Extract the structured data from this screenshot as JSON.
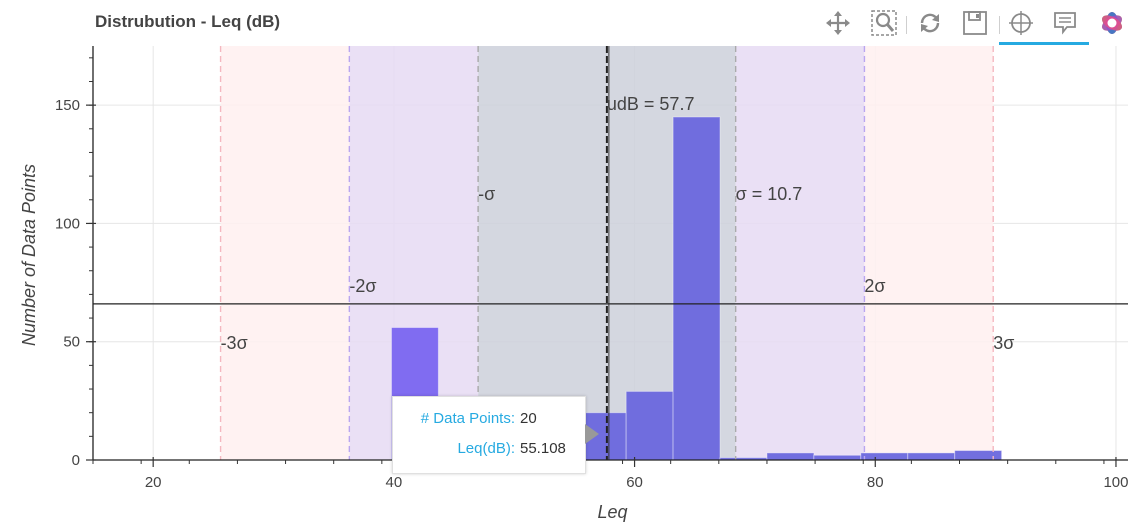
{
  "chart_data": {
    "type": "bar",
    "title": "Distrubution - Leq (dB)",
    "xlabel": "Leq",
    "ylabel": "Number of Data Points",
    "xlim": [
      15,
      101
    ],
    "ylim": [
      0,
      175
    ],
    "xticks": [
      20,
      40,
      60,
      80,
      100
    ],
    "yticks": [
      0,
      50,
      100,
      150
    ],
    "grid": true,
    "bin_width": 3.9,
    "bins": [
      {
        "start": 39.8,
        "value": 56
      },
      {
        "start": 43.7,
        "value": 11
      },
      {
        "start": 47.6,
        "value": 10
      },
      {
        "start": 51.5,
        "value": 14
      },
      {
        "start": 55.4,
        "value": 20
      },
      {
        "start": 59.3,
        "value": 29
      },
      {
        "start": 63.2,
        "value": 145
      },
      {
        "start": 67.1,
        "value": 1
      },
      {
        "start": 71.0,
        "value": 3
      },
      {
        "start": 74.9,
        "value": 2
      },
      {
        "start": 78.8,
        "value": 3
      },
      {
        "start": 82.7,
        "value": 3
      },
      {
        "start": 86.6,
        "value": 4
      }
    ],
    "mean": 57.7,
    "sigma": 10.7,
    "horizontal_line": 66,
    "bands": [
      {
        "from": 47.0,
        "to": 68.4,
        "color": "#cdd0da"
      },
      {
        "from": 36.3,
        "to": 47.0,
        "color": "#e6daf3"
      },
      {
        "from": 68.4,
        "to": 79.1,
        "color": "#e6daf3"
      },
      {
        "from": 25.6,
        "to": 36.3,
        "color": "#fff0f0"
      },
      {
        "from": 79.1,
        "to": 89.8,
        "color": "#fff0f0"
      }
    ],
    "vlines": [
      {
        "x": 47.0,
        "color": "#aaaaaa"
      },
      {
        "x": 68.4,
        "color": "#aaaaaa"
      },
      {
        "x": 36.3,
        "color": "#b9a6f0"
      },
      {
        "x": 79.1,
        "color": "#b9a6f0"
      },
      {
        "x": 25.6,
        "color": "#f4b8c0"
      },
      {
        "x": 89.8,
        "color": "#f4b8c0"
      }
    ],
    "annotations": [
      {
        "text": "udB = 57.7",
        "x": 57.7,
        "y": 150
      },
      {
        "text": "-σ",
        "x": 47.0,
        "y": 112
      },
      {
        "text": "σ = 10.7",
        "x": 68.4,
        "y": 112
      },
      {
        "text": "-2σ",
        "x": 36.3,
        "y": 73
      },
      {
        "text": "2σ",
        "x": 79.1,
        "y": 73
      },
      {
        "text": "-3σ",
        "x": 25.6,
        "y": 49
      },
      {
        "text": "3σ",
        "x": 89.8,
        "y": 49
      }
    ],
    "bar_color": "#6a67dd",
    "highlight_bar_color": "#7a65f0",
    "highlight_bin": 0
  },
  "tooltip": {
    "key1": "# Data Points:",
    "val1": "20",
    "key2": "Leq(dB):",
    "val2": "55.108"
  },
  "toolbar": {
    "tools": [
      "pan-icon",
      "box-zoom-icon",
      "reset-icon",
      "save-icon",
      "crosshair-icon",
      "hover-icon",
      "bokeh-logo-icon"
    ]
  }
}
